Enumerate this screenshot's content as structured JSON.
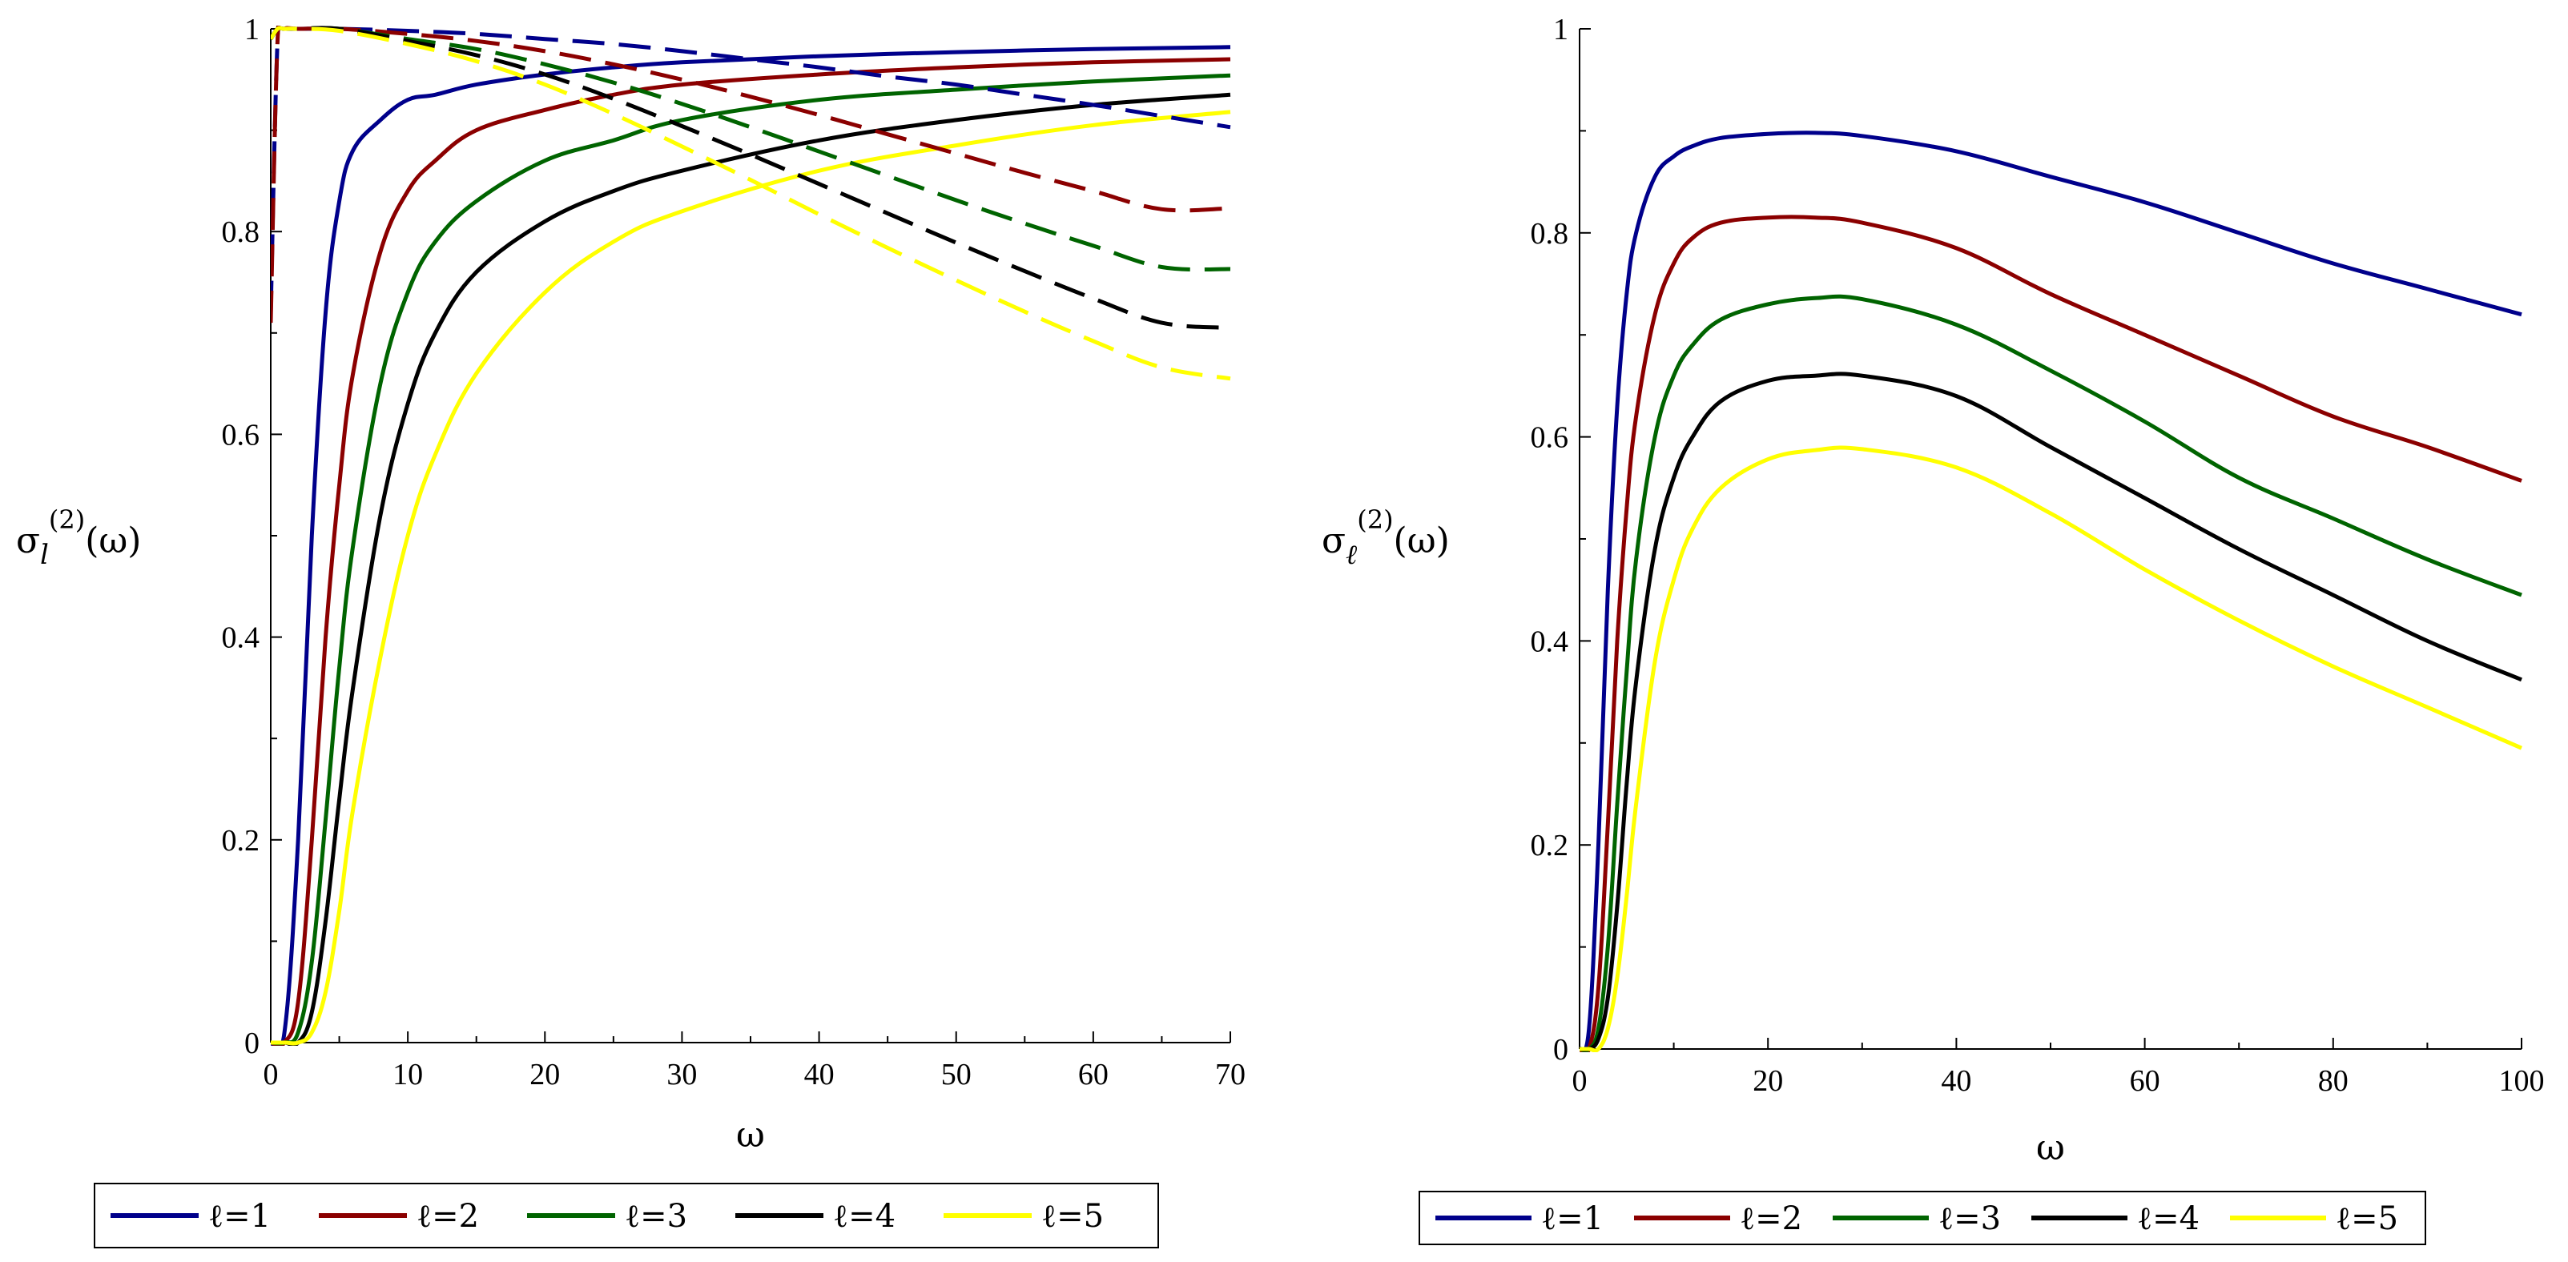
{
  "chart_data": [
    {
      "type": "line",
      "panel": "left",
      "ylabel": "σ_l^(2)(ω)",
      "ylabel_main": "σ",
      "ylabel_sub": "l",
      "ylabel_sup": "(2)",
      "ylabel_arg": "(ω)",
      "xlabel": "ω",
      "xlim": [
        0,
        70
      ],
      "ylim": [
        0,
        1
      ],
      "x_ticks": [
        0,
        10,
        20,
        30,
        40,
        50,
        60,
        70
      ],
      "y_ticks": [
        0,
        0.2,
        0.4,
        0.6,
        0.8,
        1
      ],
      "x_tick_labels": [
        "0",
        "10",
        "20",
        "30",
        "40",
        "50",
        "60",
        "70"
      ],
      "y_tick_labels": [
        "0",
        "0.2",
        "0.4",
        "0.6",
        "0.8",
        "1"
      ],
      "grid": false,
      "legend_position": "bottom",
      "series": [
        {
          "name": "ℓ=1",
          "color": "#00008B",
          "style": "solid",
          "x": [
            0,
            1,
            2,
            3,
            4,
            5,
            6,
            8,
            10,
            12,
            15,
            20,
            25,
            30,
            40,
            50,
            60,
            70
          ],
          "y": [
            0,
            0.01,
            0.2,
            0.5,
            0.72,
            0.83,
            0.88,
            0.91,
            0.93,
            0.935,
            0.945,
            0.955,
            0.962,
            0.967,
            0.973,
            0.977,
            0.98,
            0.982
          ]
        },
        {
          "name": "ℓ=2",
          "color": "#8B0000",
          "style": "solid",
          "x": [
            0,
            1,
            2,
            3,
            4,
            5,
            6,
            8,
            10,
            12,
            15,
            20,
            25,
            30,
            40,
            50,
            60,
            70
          ],
          "y": [
            0,
            0,
            0.04,
            0.2,
            0.4,
            0.55,
            0.66,
            0.78,
            0.84,
            0.87,
            0.9,
            0.92,
            0.935,
            0.945,
            0.955,
            0.962,
            0.967,
            0.97
          ]
        },
        {
          "name": "ℓ=3",
          "color": "#006400",
          "style": "solid",
          "x": [
            0,
            1,
            2,
            3,
            4,
            5,
            6,
            8,
            10,
            12,
            15,
            20,
            25,
            30,
            40,
            50,
            60,
            70
          ],
          "y": [
            0,
            0,
            0.01,
            0.08,
            0.22,
            0.37,
            0.49,
            0.65,
            0.74,
            0.79,
            0.83,
            0.87,
            0.89,
            0.91,
            0.93,
            0.94,
            0.948,
            0.954
          ]
        },
        {
          "name": "ℓ=4",
          "color": "#000000",
          "style": "solid",
          "x": [
            0,
            1,
            2,
            3,
            4,
            5,
            6,
            8,
            10,
            12,
            15,
            20,
            25,
            30,
            40,
            50,
            60,
            70
          ],
          "y": [
            0,
            0,
            0,
            0.03,
            0.12,
            0.24,
            0.35,
            0.52,
            0.63,
            0.7,
            0.76,
            0.81,
            0.84,
            0.86,
            0.89,
            0.91,
            0.925,
            0.935
          ]
        },
        {
          "name": "ℓ=5",
          "color": "#FFFF00",
          "style": "solid",
          "x": [
            0,
            1,
            2,
            3,
            4,
            5,
            6,
            8,
            10,
            12,
            15,
            20,
            25,
            30,
            40,
            50,
            60,
            70
          ],
          "y": [
            0,
            0,
            0,
            0.01,
            0.05,
            0.13,
            0.23,
            0.38,
            0.5,
            0.58,
            0.66,
            0.74,
            0.79,
            0.82,
            0.86,
            0.885,
            0.905,
            0.918
          ]
        },
        {
          "name": "ℓ=1",
          "color": "#00008B",
          "style": "dashed",
          "x": [
            0,
            0.5,
            1,
            2,
            5,
            10,
            15,
            20,
            25,
            30,
            35,
            40,
            45,
            50,
            55,
            60,
            65,
            70
          ],
          "y": [
            0.72,
            0.99,
            1.0,
            1.0,
            1.0,
            0.998,
            0.995,
            0.99,
            0.985,
            0.978,
            0.97,
            0.962,
            0.953,
            0.945,
            0.935,
            0.925,
            0.914,
            0.903
          ]
        },
        {
          "name": "ℓ=2",
          "color": "#8B0000",
          "style": "dashed",
          "x": [
            0,
            0.5,
            1,
            2,
            5,
            10,
            15,
            20,
            25,
            30,
            35,
            40,
            45,
            50,
            55,
            60,
            65,
            70
          ],
          "y": [
            0.71,
            0.99,
            1.0,
            1.0,
            1.0,
            0.995,
            0.988,
            0.978,
            0.965,
            0.95,
            0.933,
            0.915,
            0.896,
            0.877,
            0.858,
            0.84,
            0.822,
            0.823
          ]
        },
        {
          "name": "ℓ=3",
          "color": "#006400",
          "style": "dashed",
          "x": [
            0,
            0.5,
            1,
            2,
            5,
            10,
            15,
            20,
            25,
            30,
            35,
            40,
            45,
            50,
            55,
            60,
            65,
            70
          ],
          "y": [
            0.99,
            1.0,
            1.0,
            1.0,
            1.0,
            0.99,
            0.98,
            0.965,
            0.947,
            0.926,
            0.903,
            0.879,
            0.855,
            0.831,
            0.808,
            0.786,
            0.765,
            0.763
          ]
        },
        {
          "name": "ℓ=4",
          "color": "#000000",
          "style": "dashed",
          "x": [
            0,
            0.5,
            1,
            2,
            5,
            10,
            15,
            20,
            25,
            30,
            35,
            40,
            45,
            50,
            55,
            60,
            65,
            70
          ],
          "y": [
            0.99,
            1.0,
            1.0,
            1.0,
            1.0,
            0.988,
            0.974,
            0.955,
            0.931,
            0.904,
            0.876,
            0.847,
            0.818,
            0.789,
            0.761,
            0.734,
            0.71,
            0.705
          ]
        },
        {
          "name": "ℓ=5",
          "color": "#FFFF00",
          "style": "dashed",
          "x": [
            0,
            0.5,
            1,
            2,
            5,
            10,
            15,
            20,
            25,
            30,
            35,
            40,
            45,
            50,
            55,
            60,
            65,
            70
          ],
          "y": [
            0.99,
            1.0,
            1.0,
            1.0,
            0.998,
            0.985,
            0.968,
            0.945,
            0.916,
            0.884,
            0.851,
            0.817,
            0.784,
            0.752,
            0.721,
            0.692,
            0.666,
            0.655
          ]
        }
      ],
      "legend": [
        {
          "label": "ℓ=1",
          "color": "#00008B"
        },
        {
          "label": "ℓ=2",
          "color": "#8B0000"
        },
        {
          "label": "ℓ=3",
          "color": "#006400"
        },
        {
          "label": "ℓ=4",
          "color": "#000000"
        },
        {
          "label": "ℓ=5",
          "color": "#FFFF00"
        }
      ]
    },
    {
      "type": "line",
      "panel": "right",
      "ylabel": "σ_ℓ^(2)(ω)",
      "ylabel_main": "σ",
      "ylabel_sub": "ℓ",
      "ylabel_sup": "(2)",
      "ylabel_arg": "(ω)",
      "xlabel": "ω",
      "xlim": [
        0,
        100
      ],
      "ylim": [
        0,
        1
      ],
      "x_ticks": [
        0,
        20,
        40,
        60,
        80,
        100
      ],
      "y_ticks": [
        0,
        0.2,
        0.4,
        0.6,
        0.8,
        1
      ],
      "x_tick_labels": [
        "0",
        "20",
        "40",
        "60",
        "80",
        "100"
      ],
      "y_tick_labels": [
        "0",
        "0.2",
        "0.4",
        "0.6",
        "0.8",
        "1"
      ],
      "grid": false,
      "legend_position": "bottom",
      "series": [
        {
          "name": "ℓ=1",
          "color": "#00008B",
          "style": "solid",
          "x": [
            0,
            1,
            2,
            3,
            4,
            5,
            6,
            8,
            10,
            12,
            15,
            20,
            25,
            30,
            40,
            50,
            60,
            70,
            80,
            90,
            100
          ],
          "y": [
            0,
            0.02,
            0.2,
            0.45,
            0.63,
            0.74,
            0.8,
            0.855,
            0.875,
            0.885,
            0.893,
            0.897,
            0.898,
            0.895,
            0.88,
            0.855,
            0.83,
            0.8,
            0.77,
            0.745,
            0.72
          ]
        },
        {
          "name": "ℓ=2",
          "color": "#8B0000",
          "style": "solid",
          "x": [
            0,
            1,
            2,
            3,
            4,
            5,
            6,
            8,
            10,
            12,
            15,
            20,
            25,
            30,
            40,
            50,
            60,
            70,
            80,
            90,
            100
          ],
          "y": [
            0,
            0,
            0.06,
            0.22,
            0.4,
            0.53,
            0.62,
            0.72,
            0.77,
            0.795,
            0.81,
            0.815,
            0.815,
            0.81,
            0.785,
            0.74,
            0.7,
            0.66,
            0.62,
            0.59,
            0.557
          ]
        },
        {
          "name": "ℓ=3",
          "color": "#006400",
          "style": "solid",
          "x": [
            0,
            1,
            2,
            3,
            4,
            5,
            6,
            8,
            10,
            12,
            15,
            20,
            25,
            30,
            40,
            50,
            60,
            70,
            80,
            90,
            100
          ],
          "y": [
            0,
            0,
            0.02,
            0.1,
            0.24,
            0.37,
            0.48,
            0.6,
            0.66,
            0.69,
            0.715,
            0.73,
            0.736,
            0.735,
            0.71,
            0.665,
            0.615,
            0.56,
            0.52,
            0.48,
            0.445
          ]
        },
        {
          "name": "ℓ=4",
          "color": "#000000",
          "style": "solid",
          "x": [
            0,
            1,
            2,
            3,
            4,
            5,
            6,
            8,
            10,
            12,
            15,
            20,
            25,
            30,
            40,
            50,
            60,
            70,
            80,
            90,
            100
          ],
          "y": [
            0,
            0,
            0.01,
            0.05,
            0.14,
            0.26,
            0.36,
            0.49,
            0.56,
            0.6,
            0.635,
            0.655,
            0.66,
            0.66,
            0.64,
            0.59,
            0.54,
            0.49,
            0.445,
            0.4,
            0.362
          ]
        },
        {
          "name": "ℓ=5",
          "color": "#FFFF00",
          "style": "solid",
          "x": [
            0,
            1,
            2,
            3,
            4,
            5,
            6,
            8,
            10,
            12,
            15,
            20,
            25,
            30,
            40,
            50,
            60,
            70,
            80,
            90,
            100
          ],
          "y": [
            0,
            0,
            0,
            0.02,
            0.07,
            0.15,
            0.24,
            0.38,
            0.46,
            0.51,
            0.55,
            0.578,
            0.587,
            0.588,
            0.57,
            0.525,
            0.47,
            0.42,
            0.375,
            0.335,
            0.295
          ]
        }
      ],
      "legend": [
        {
          "label": "ℓ=1",
          "color": "#00008B"
        },
        {
          "label": "ℓ=2",
          "color": "#8B0000"
        },
        {
          "label": "ℓ=3",
          "color": "#006400"
        },
        {
          "label": "ℓ=4",
          "color": "#000000"
        },
        {
          "label": "ℓ=5",
          "color": "#FFFF00"
        }
      ]
    }
  ]
}
